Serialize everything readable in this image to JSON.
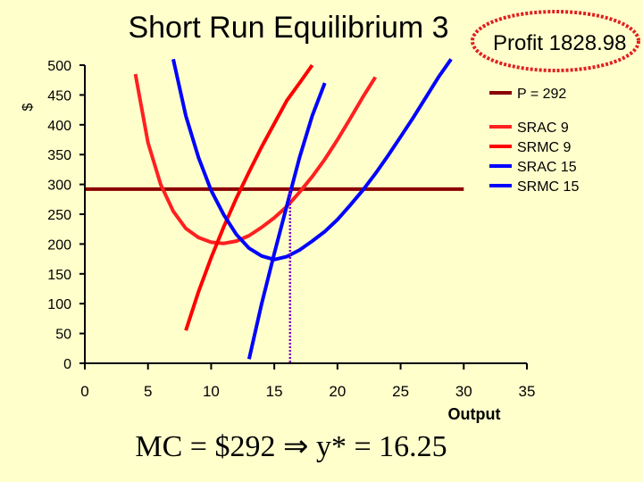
{
  "title": "Short Run Equilibrium 3",
  "profit_label": "Profit 1828.98",
  "formula": "MC = $292  ⇒  y* = 16.25",
  "chart_data": {
    "type": "line",
    "title": "Short Run Equilibrium 3",
    "xlabel": "Output",
    "ylabel": "$",
    "xlim": [
      0,
      35
    ],
    "ylim": [
      0,
      500
    ],
    "x_ticks": [
      0,
      5,
      10,
      15,
      20,
      25,
      30,
      35
    ],
    "y_ticks": [
      0,
      50,
      100,
      150,
      200,
      250,
      300,
      350,
      400,
      450,
      500
    ],
    "grid": false,
    "legend_position": "right",
    "equilibrium": {
      "price": 292,
      "output": 16.25
    },
    "series": [
      {
        "name": "P = 292",
        "color": "#8B0000",
        "points": [
          [
            0,
            292
          ],
          [
            30,
            292
          ]
        ]
      },
      {
        "name": "SRAC 9",
        "color": "#FF2020",
        "points": [
          [
            4,
            485
          ],
          [
            5,
            370
          ],
          [
            6,
            300
          ],
          [
            7,
            255
          ],
          [
            8,
            226
          ],
          [
            9,
            211
          ],
          [
            10,
            203
          ],
          [
            11,
            201
          ],
          [
            12,
            205
          ],
          [
            13,
            214
          ],
          [
            14,
            228
          ],
          [
            15,
            244
          ],
          [
            16,
            263
          ],
          [
            17,
            287
          ],
          [
            18,
            313
          ],
          [
            19,
            342
          ],
          [
            20,
            375
          ],
          [
            21,
            410
          ],
          [
            22,
            446
          ],
          [
            23,
            480
          ]
        ]
      },
      {
        "name": "SRMC 9",
        "color": "#FF0000",
        "points": [
          [
            8,
            55
          ],
          [
            9,
            120
          ],
          [
            10,
            177
          ],
          [
            11,
            229
          ],
          [
            12,
            277
          ],
          [
            13,
            321
          ],
          [
            14,
            363
          ],
          [
            15,
            402
          ],
          [
            16,
            441
          ],
          [
            17,
            470
          ],
          [
            18,
            500
          ]
        ]
      },
      {
        "name": "SRAC 15",
        "color": "#0000FF",
        "points": [
          [
            7,
            510
          ],
          [
            8,
            415
          ],
          [
            9,
            345
          ],
          [
            10,
            290
          ],
          [
            11,
            249
          ],
          [
            12,
            216
          ],
          [
            13,
            193
          ],
          [
            14,
            180
          ],
          [
            15,
            174
          ],
          [
            16,
            179
          ],
          [
            17,
            190
          ],
          [
            18,
            205
          ],
          [
            19,
            221
          ],
          [
            20,
            241
          ],
          [
            21,
            265
          ],
          [
            22,
            290
          ],
          [
            23,
            318
          ],
          [
            24,
            348
          ],
          [
            25,
            380
          ],
          [
            26,
            412
          ],
          [
            27,
            446
          ],
          [
            28,
            480
          ],
          [
            29,
            510
          ]
        ]
      },
      {
        "name": "SRMC 15",
        "color": "#0000FF",
        "points": [
          [
            13,
            7
          ],
          [
            14,
            100
          ],
          [
            15,
            184
          ],
          [
            16,
            265
          ],
          [
            17,
            345
          ],
          [
            18,
            415
          ],
          [
            19,
            470
          ]
        ]
      }
    ]
  }
}
